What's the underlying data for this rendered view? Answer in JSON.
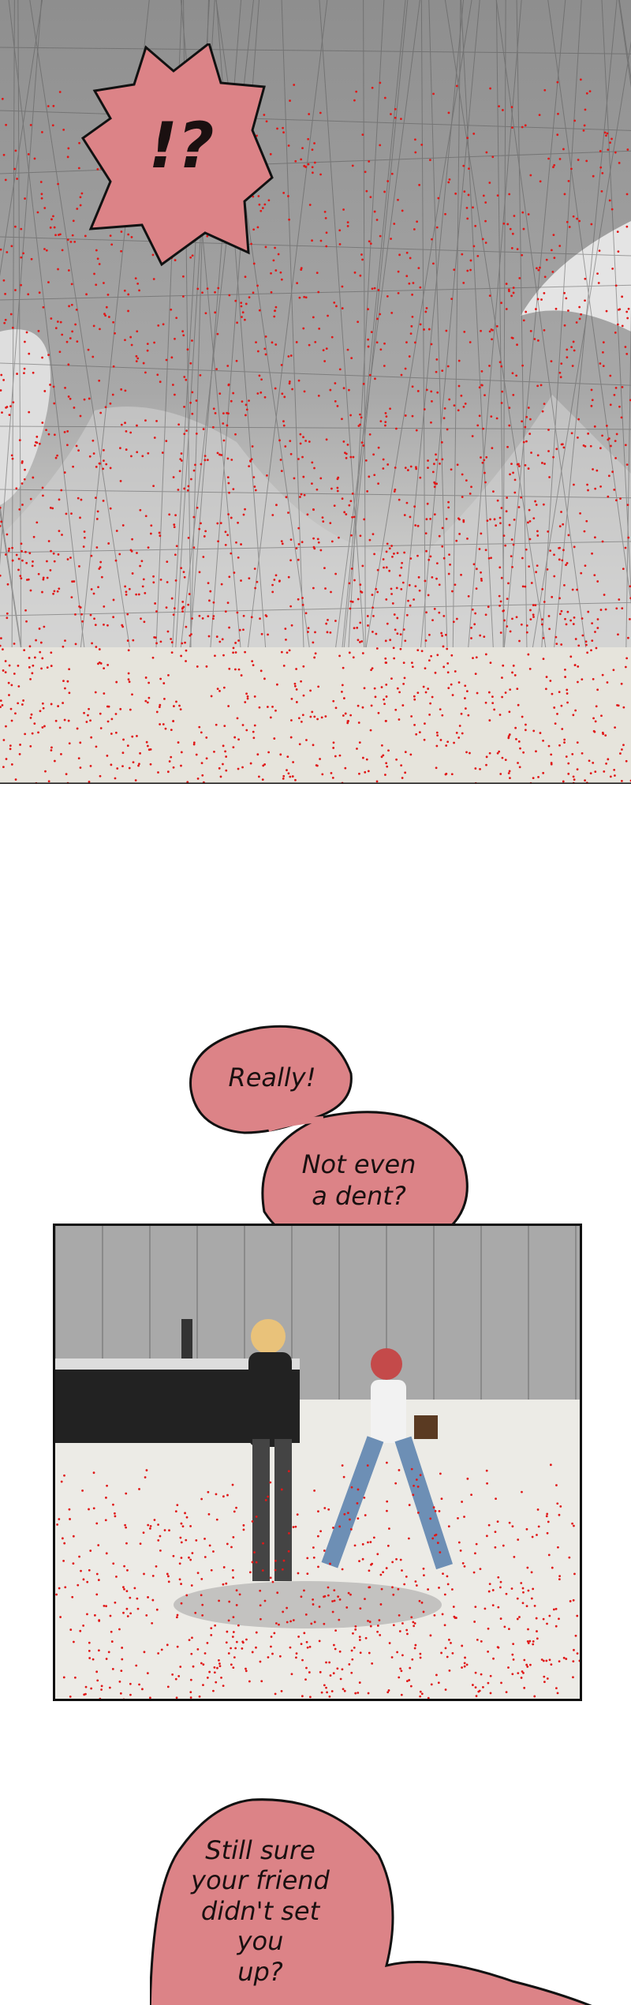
{
  "colors": {
    "bubble_fill": "#dc8387",
    "bubble_stroke": "#111111",
    "speckle": "#e01818",
    "panel_gray": "#9a9a9a",
    "floor": "#e6e4dc"
  },
  "panel1": {
    "exclaim_bubble": {
      "text": "!?"
    }
  },
  "dialogue": {
    "bubble1": {
      "text": "Really!"
    },
    "bubble2": {
      "line1": "Not even",
      "line2": "a dent?"
    },
    "bubble3": {
      "line1": "Still sure",
      "line2": "your friend",
      "line3": "didn't set you",
      "line4": "up?"
    }
  }
}
